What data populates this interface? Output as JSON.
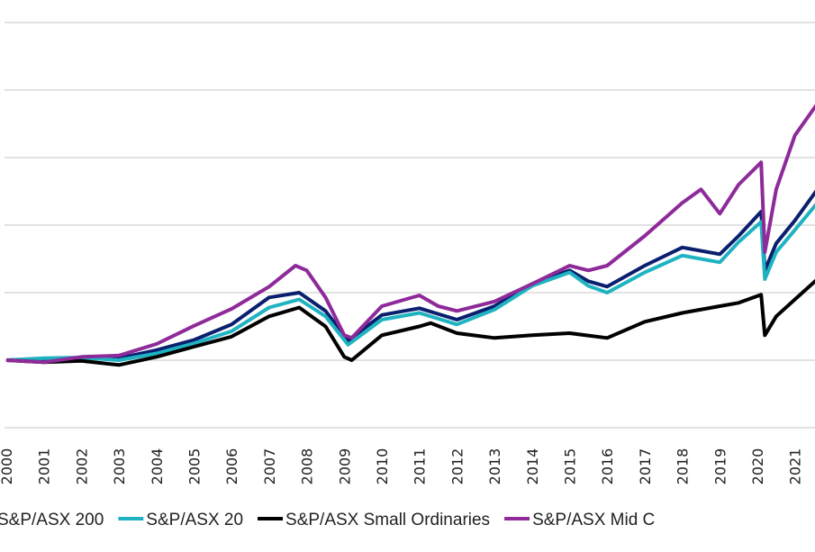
{
  "chart_data": {
    "type": "line",
    "title": "",
    "xlabel": "",
    "ylabel": "",
    "xlim": [
      2000,
      2021.6
    ],
    "ylim": [
      0,
      600
    ],
    "grid": true,
    "legend_placement": "bottom",
    "x_tick_labels": [
      "2000",
      "2001",
      "2002",
      "2003",
      "2004",
      "2005",
      "2006",
      "2007",
      "2008",
      "2009",
      "2010",
      "2011",
      "2012",
      "2013",
      "2014",
      "2015",
      "2016",
      "2017",
      "2018",
      "2019",
      "2020",
      "2021"
    ],
    "series": [
      {
        "name": "S&P/ASX 200",
        "color": "#0a1f6e",
        "x": [
          2000,
          2002,
          2003,
          2004,
          2005,
          2006,
          2007,
          2007.8,
          2008.5,
          2009.1,
          2010,
          2011,
          2012,
          2013,
          2014,
          2015,
          2015.5,
          2016,
          2017,
          2018,
          2019,
          2019.5,
          2020.1,
          2020.2,
          2020.5,
          2021,
          2021.6
        ],
        "y": [
          100,
          103,
          103,
          115,
          130,
          153,
          193,
          200,
          173,
          129,
          167,
          177,
          160,
          180,
          213,
          233,
          217,
          209,
          240,
          267,
          257,
          284,
          320,
          233,
          273,
          307,
          353
        ]
      },
      {
        "name": "S&P/ASX 20",
        "color": "#1fb3c2",
        "x": [
          2000,
          2001,
          2002,
          2003,
          2004,
          2005,
          2006,
          2007,
          2007.8,
          2008.5,
          2009.1,
          2010,
          2011,
          2012,
          2013,
          2014,
          2015,
          2015.5,
          2016,
          2017,
          2018,
          2019,
          2019.5,
          2020.1,
          2020.2,
          2020.5,
          2021,
          2021.6
        ],
        "y": [
          100,
          103,
          104,
          100,
          110,
          125,
          143,
          178,
          190,
          165,
          123,
          160,
          170,
          153,
          175,
          210,
          230,
          210,
          200,
          230,
          255,
          245,
          275,
          305,
          220,
          260,
          293,
          333
        ]
      },
      {
        "name": "S&P/ASX Small Ordinaries",
        "color": "#000000",
        "x": [
          2000,
          2001,
          2002,
          2003,
          2004,
          2005,
          2006,
          2007,
          2007.8,
          2008,
          2008.5,
          2009.0,
          2009.2,
          2010,
          2011,
          2011.3,
          2012,
          2013,
          2014,
          2015,
          2016,
          2017,
          2018,
          2019,
          2019.5,
          2020.1,
          2020.2,
          2020.5,
          2021,
          2021.6
        ],
        "y": [
          100,
          97,
          99,
          93,
          105,
          120,
          135,
          165,
          178,
          170,
          150,
          105,
          100,
          137,
          150,
          155,
          140,
          133,
          137,
          140,
          133,
          157,
          170,
          180,
          185,
          197,
          137,
          165,
          190,
          220
        ]
      },
      {
        "name": "S&P/ASX Mid C",
        "color": "#8e2a9a",
        "x": [
          2000,
          2001,
          2002,
          2003,
          2004,
          2005,
          2006,
          2007,
          2007.7,
          2008,
          2008.5,
          2009.0,
          2009.2,
          2010,
          2011,
          2011.5,
          2012,
          2013,
          2014,
          2015,
          2015.5,
          2016,
          2017,
          2018,
          2018.5,
          2019,
          2019.5,
          2020.1,
          2020.2,
          2020.5,
          2021,
          2021.6
        ],
        "y": [
          100,
          97,
          105,
          107,
          124,
          151,
          176,
          209,
          240,
          233,
          193,
          137,
          133,
          180,
          196,
          180,
          173,
          187,
          213,
          240,
          233,
          240,
          284,
          333,
          353,
          317,
          360,
          393,
          260,
          353,
          433,
          480
        ]
      }
    ]
  }
}
